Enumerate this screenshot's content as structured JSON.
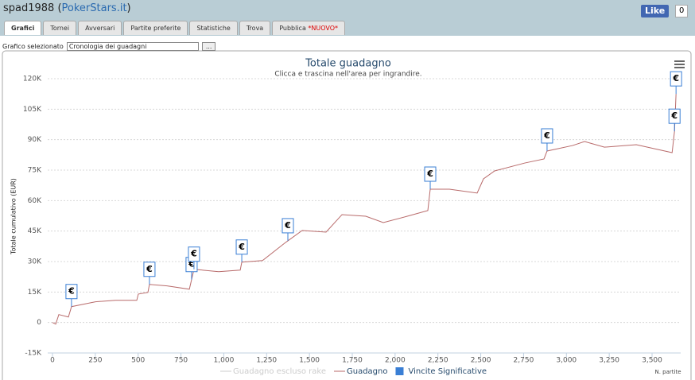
{
  "header": {
    "parts": [
      "spad1988 (",
      "PokerStars.it",
      ")"
    ],
    "like": "Like",
    "like_count": "0"
  },
  "tabs": [
    "Grafici",
    "Tornei",
    "Avversari",
    "Partite preferite",
    "Statistiche",
    "Trova",
    "Pubblica"
  ],
  "new_badge": "*NUOVO*",
  "selector": {
    "label": "Grafico selezionato",
    "value": "Cronologia dei guadagni",
    "button": "..."
  },
  "chart_data": {
    "type": "line",
    "title": "Totale guadagno",
    "subtitle": "Clicca e trascina nell'area per ingrandire.",
    "y_label": "Totale cumulativo (EUR)",
    "x_label": "N. partite",
    "grid": true,
    "xlim": [
      0,
      3500
    ],
    "ylim": [
      -15000,
      120000
    ],
    "xticks": [
      0,
      250,
      500,
      750,
      {
        "value": 1000,
        "label": "1,000"
      },
      {
        "value": 1250,
        "label": "1,250"
      },
      {
        "value": 1500,
        "label": "1,500"
      },
      {
        "value": 1750,
        "label": "1,750"
      },
      {
        "value": 2000,
        "label": "2,000"
      },
      {
        "value": 2250,
        "label": "2,250"
      },
      {
        "value": 2500,
        "label": "2,500"
      },
      {
        "value": 2750,
        "label": "2,750"
      },
      {
        "value": 3000,
        "label": "3,000"
      },
      {
        "value": 3250,
        "label": "3,250"
      },
      {
        "value": 3500,
        "label": "3,500"
      }
    ],
    "yticks": [
      {
        "value": -15000,
        "label": "-15K"
      },
      0,
      {
        "value": 15000,
        "label": "15K"
      },
      {
        "value": 30000,
        "label": "30K"
      },
      {
        "value": 45000,
        "label": "45K"
      },
      {
        "value": 60000,
        "label": "60K"
      },
      {
        "value": 75000,
        "label": "75K"
      },
      {
        "value": 90000,
        "label": "90K"
      },
      {
        "value": 105000,
        "label": "105K"
      },
      {
        "value": 120000,
        "label": "120K"
      }
    ],
    "series": [
      {
        "name": "Guadagno escluso rake",
        "color": "#cccccc",
        "visible": false
      },
      {
        "name": "Guadagno",
        "color": "#b86a6a",
        "visible": true,
        "x": [
          0,
          19,
          37,
          93,
          111,
          251,
          367,
          492,
          501,
          557,
          566,
          669,
          799,
          812,
          826,
          970,
          1096,
          1105,
          1226,
          1356,
          1374,
          1458,
          1597,
          1690,
          1829,
          1931,
          2071,
          2191,
          2205,
          2317,
          2479,
          2516,
          2581,
          2757,
          2869,
          2887,
          3036,
          3106,
          3222,
          3408,
          3617,
          3631,
          3640
        ],
        "values": [
          0,
          -800,
          3900,
          2700,
          7800,
          10200,
          10900,
          10900,
          14000,
          14800,
          18750,
          18000,
          16400,
          21100,
          26200,
          25000,
          25800,
          29700,
          30500,
          39100,
          40200,
          45300,
          44500,
          53100,
          52300,
          49200,
          52300,
          55100,
          65600,
          65600,
          63700,
          70700,
          74600,
          78500,
          80500,
          84400,
          87100,
          89100,
          86300,
          87500,
          83600,
          94100,
          112500
        ]
      },
      {
        "name": "Vincite Significative",
        "color": "#3a7fd5",
        "visible": true,
        "style": "flag",
        "flag_text": "€",
        "x": [
          111,
          566,
          812,
          826,
          1105,
          1374,
          2205,
          2887,
          3631,
          3640
        ],
        "values": [
          7800,
          18750,
          21100,
          26200,
          29700,
          40200,
          65600,
          84400,
          94100,
          112500
        ]
      }
    ]
  }
}
